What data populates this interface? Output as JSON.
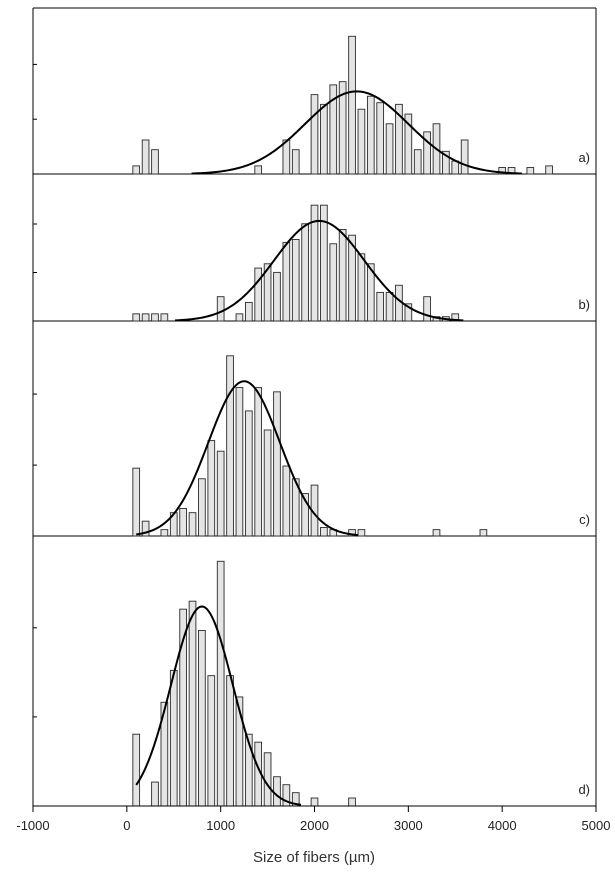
{
  "chart_data": {
    "type": "bar",
    "xlabel": "Size of fibers (µm)",
    "xlim": [
      -1000,
      5000
    ],
    "x_ticks": [
      -1000,
      0,
      1000,
      2000,
      3000,
      4000,
      5000
    ],
    "bin_width": 100,
    "panels": [
      {
        "label": "a)",
        "ylim": [
          0,
          1
        ],
        "fit": {
          "type": "normal",
          "mean": 2450,
          "sd": 550,
          "peak": 0.51
        },
        "bins": [
          [
            100,
            0.05
          ],
          [
            200,
            0.21
          ],
          [
            300,
            0.15
          ],
          [
            1400,
            0.05
          ],
          [
            1700,
            0.21
          ],
          [
            1800,
            0.15
          ],
          [
            2000,
            0.49
          ],
          [
            2100,
            0.43
          ],
          [
            2200,
            0.55
          ],
          [
            2300,
            0.57
          ],
          [
            2400,
            0.85
          ],
          [
            2500,
            0.4
          ],
          [
            2600,
            0.48
          ],
          [
            2700,
            0.44
          ],
          [
            2800,
            0.31
          ],
          [
            2900,
            0.43
          ],
          [
            3000,
            0.37
          ],
          [
            3100,
            0.15
          ],
          [
            3200,
            0.26
          ],
          [
            3300,
            0.31
          ],
          [
            3400,
            0.14
          ],
          [
            3500,
            0.08
          ],
          [
            3600,
            0.21
          ],
          [
            4000,
            0.04
          ],
          [
            4100,
            0.04
          ],
          [
            4300,
            0.04
          ],
          [
            4500,
            0.05
          ]
        ]
      },
      {
        "label": "b)",
        "ylim": [
          0,
          1
        ],
        "fit": {
          "type": "normal",
          "mean": 2050,
          "sd": 480,
          "peak": 0.7
        },
        "bins": [
          [
            100,
            0.05
          ],
          [
            200,
            0.05
          ],
          [
            300,
            0.05
          ],
          [
            400,
            0.05
          ],
          [
            1000,
            0.17
          ],
          [
            1200,
            0.05
          ],
          [
            1300,
            0.13
          ],
          [
            1400,
            0.37
          ],
          [
            1500,
            0.4
          ],
          [
            1600,
            0.34
          ],
          [
            1700,
            0.55
          ],
          [
            1800,
            0.57
          ],
          [
            1900,
            0.68
          ],
          [
            2000,
            0.81
          ],
          [
            2100,
            0.81
          ],
          [
            2200,
            0.54
          ],
          [
            2300,
            0.64
          ],
          [
            2400,
            0.6
          ],
          [
            2500,
            0.47
          ],
          [
            2600,
            0.4
          ],
          [
            2700,
            0.2
          ],
          [
            2800,
            0.2
          ],
          [
            2900,
            0.25
          ],
          [
            3000,
            0.12
          ],
          [
            3200,
            0.17
          ],
          [
            3300,
            0.03
          ],
          [
            3400,
            0.03
          ],
          [
            3500,
            0.05
          ]
        ]
      },
      {
        "label": "c)",
        "ylim": [
          0,
          1
        ],
        "fit": {
          "type": "normal",
          "mean": 1250,
          "sd": 380,
          "peak": 0.73
        },
        "bins": [
          [
            100,
            0.32
          ],
          [
            200,
            0.07
          ],
          [
            400,
            0.03
          ],
          [
            500,
            0.11
          ],
          [
            600,
            0.13
          ],
          [
            700,
            0.11
          ],
          [
            800,
            0.27
          ],
          [
            900,
            0.45
          ],
          [
            1000,
            0.4
          ],
          [
            1100,
            0.85
          ],
          [
            1200,
            0.7
          ],
          [
            1300,
            0.59
          ],
          [
            1400,
            0.7
          ],
          [
            1500,
            0.5
          ],
          [
            1600,
            0.68
          ],
          [
            1700,
            0.33
          ],
          [
            1800,
            0.27
          ],
          [
            1900,
            0.2
          ],
          [
            2000,
            0.24
          ],
          [
            2100,
            0.04
          ],
          [
            2200,
            0.03
          ],
          [
            2400,
            0.03
          ],
          [
            2500,
            0.03
          ],
          [
            3300,
            0.03
          ],
          [
            3800,
            0.03
          ]
        ]
      },
      {
        "label": "d)",
        "ylim": [
          0,
          1
        ],
        "fit": {
          "type": "normal",
          "mean": 800,
          "sd": 330,
          "peak": 0.75
        },
        "bins": [
          [
            100,
            0.27
          ],
          [
            300,
            0.09
          ],
          [
            400,
            0.39
          ],
          [
            500,
            0.51
          ],
          [
            600,
            0.74
          ],
          [
            700,
            0.77
          ],
          [
            800,
            0.66
          ],
          [
            900,
            0.49
          ],
          [
            1000,
            0.92
          ],
          [
            1100,
            0.49
          ],
          [
            1200,
            0.41
          ],
          [
            1300,
            0.27
          ],
          [
            1400,
            0.24
          ],
          [
            1500,
            0.2
          ],
          [
            1600,
            0.11
          ],
          [
            1700,
            0.08
          ],
          [
            1800,
            0.05
          ],
          [
            2000,
            0.03
          ],
          [
            2400,
            0.03
          ]
        ]
      }
    ]
  }
}
